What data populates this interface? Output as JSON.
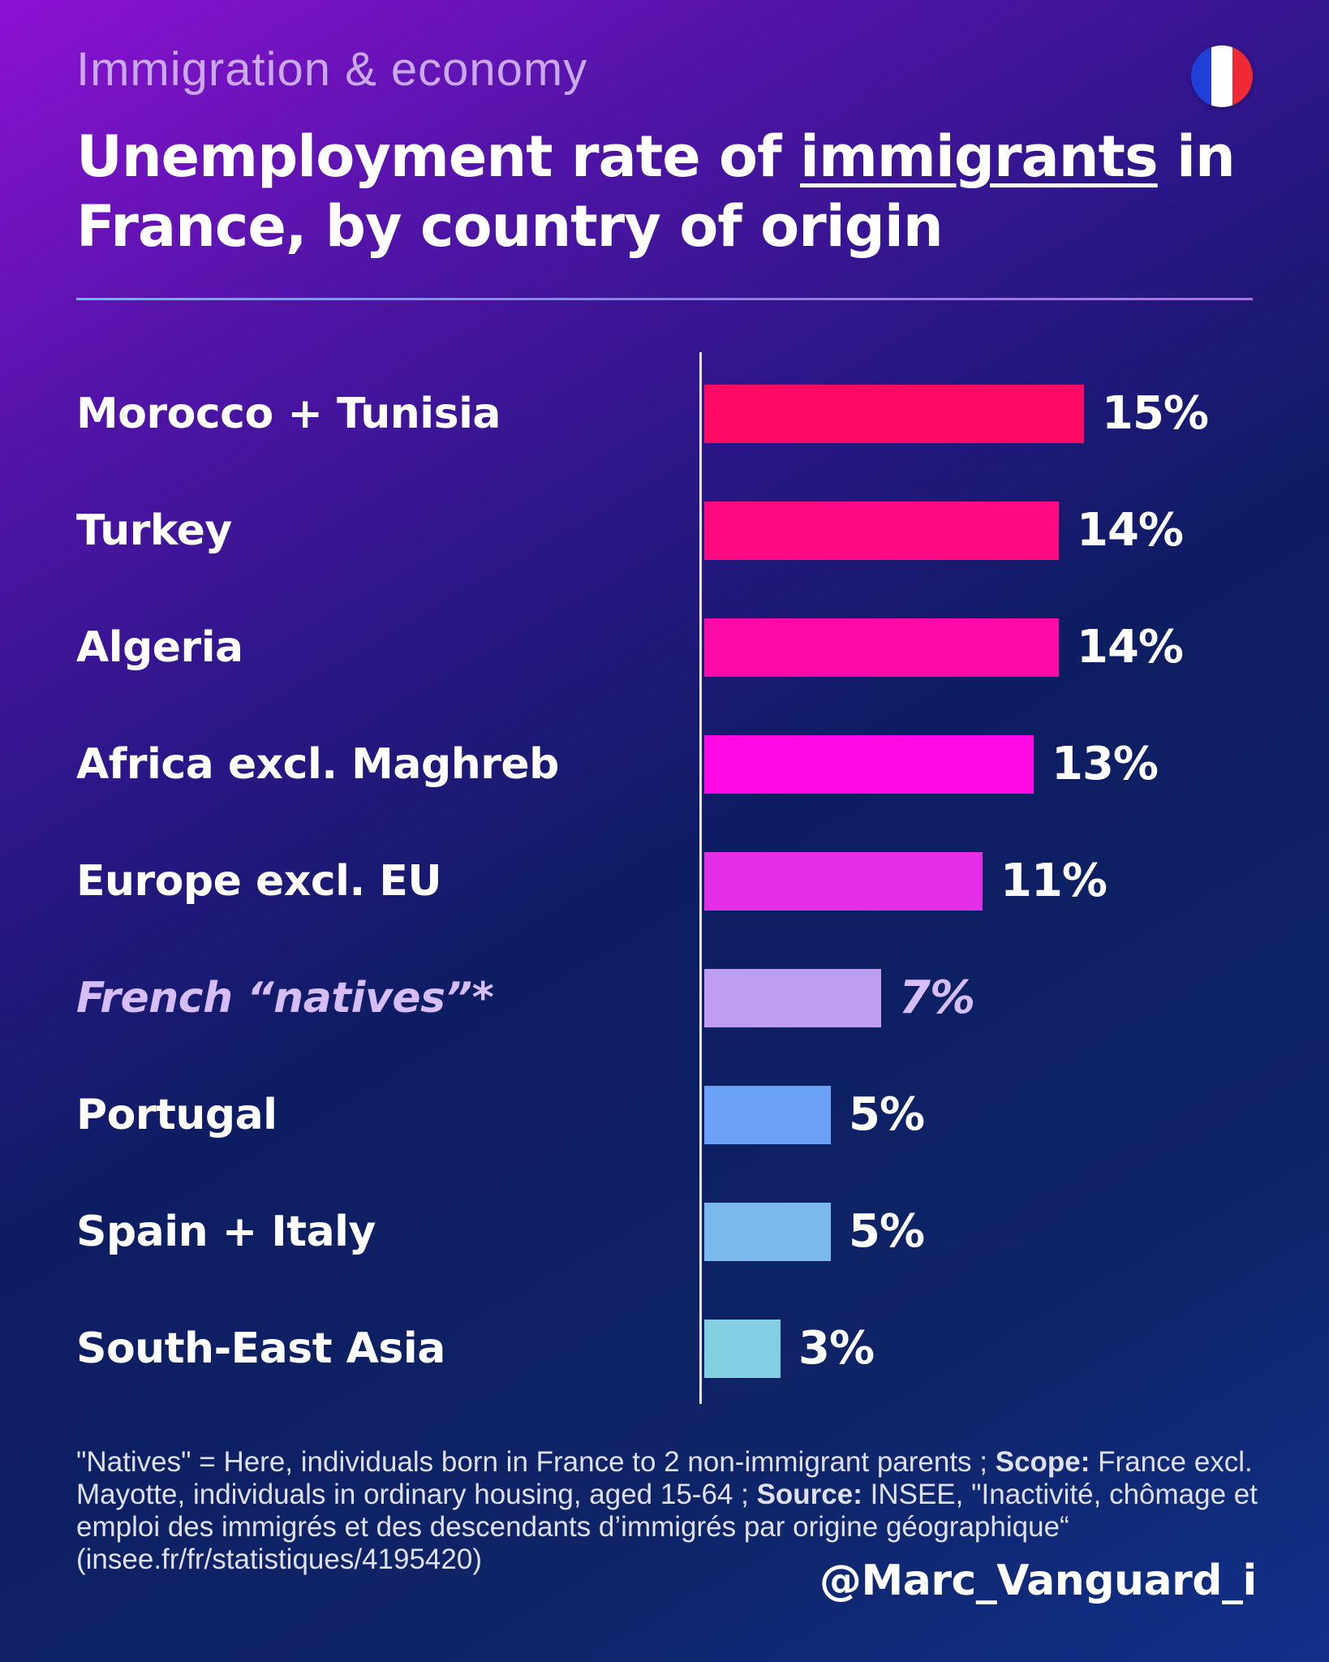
{
  "header": {
    "kicker": "Immigration & economy",
    "title_before": "Unemployment rate of ",
    "title_underlined": "immigrants",
    "title_after": " in France, by country of origin",
    "flag_colors": [
      "#1f3fd8",
      "#ffffff",
      "#f02a35"
    ]
  },
  "chart_data": {
    "type": "bar",
    "orientation": "horizontal",
    "title": "Unemployment rate of immigrants in France, by country of origin",
    "unit": "%",
    "xlim": [
      0,
      15
    ],
    "categories": [
      "Morocco + Tunisia",
      "Turkey",
      "Algeria",
      "Africa excl. Maghreb",
      "Europe excl. EU",
      "French “natives”*",
      "Portugal",
      "Spain + Italy",
      "South-East Asia"
    ],
    "values": [
      15,
      14,
      14,
      13,
      11,
      7,
      5,
      5,
      3
    ],
    "value_labels": [
      "15%",
      "14%",
      "14%",
      "13%",
      "11%",
      "7%",
      "5%",
      "5%",
      "3%"
    ],
    "highlighted_category": "French “natives”*",
    "bar_colors": [
      "#ff0a64",
      "#ff0a82",
      "#ff0aa8",
      "#ff0ae6",
      "#e52ee8",
      "#bf9ef1",
      "#6ba2f7",
      "#79b9eb",
      "#82cfe2"
    ]
  },
  "footnote": {
    "part1": "\"Natives\" = Here, individuals born in France to 2 non-immigrant parents ; ",
    "scope_label": "Scope:",
    "part2": " France excl. Mayotte, individuals in ordinary housing, aged 15-64 ; ",
    "source_label": "Source:",
    "part3": " INSEE, \"Inactivité, chômage et emploi des immigrés et des descendants d’immigrés par origine géographique“",
    "link": "(insee.fr/fr/statistiques/4195420)"
  },
  "credit": {
    "handle": "@Marc_Vanguard_i"
  }
}
